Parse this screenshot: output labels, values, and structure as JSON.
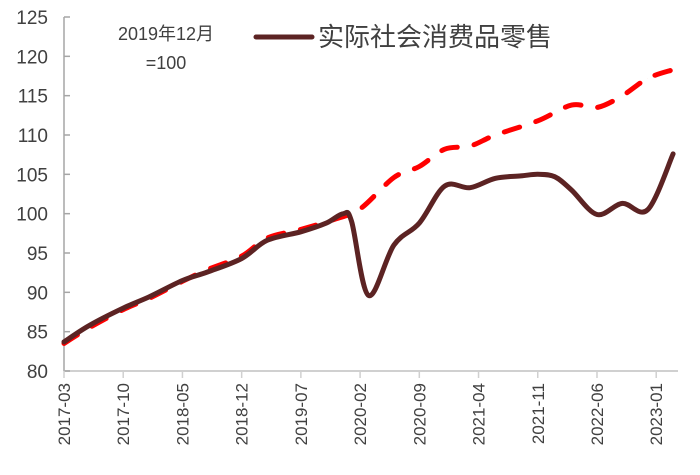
{
  "chart_data": {
    "type": "line",
    "title": "",
    "xlabel": "",
    "ylabel": "",
    "ylim": [
      80,
      125
    ],
    "yticks": [
      "80",
      "85",
      "90",
      "95",
      "100",
      "105",
      "110",
      "115",
      "120",
      "125"
    ],
    "xticks": [
      "2017-03",
      "2017-10",
      "2018-05",
      "2018-12",
      "2019-07",
      "2020-02",
      "2020-09",
      "2021-04",
      "2021-11",
      "2022-06",
      "2023-01"
    ],
    "grid": false,
    "legend_position": "top",
    "annotation": [
      "2019年12月",
      "=100"
    ],
    "series": [
      {
        "name": "实际社会消费品零售",
        "style": "solid",
        "color": "#5C2323",
        "points": [
          [
            "2017-03",
            83.7
          ],
          [
            "2017-06",
            85.8
          ],
          [
            "2017-10",
            88.0
          ],
          [
            "2018-01",
            89.4
          ],
          [
            "2018-05",
            91.5
          ],
          [
            "2018-08",
            92.6
          ],
          [
            "2018-12",
            94.3
          ],
          [
            "2019-03",
            96.6
          ],
          [
            "2019-07",
            97.7
          ],
          [
            "2019-10",
            98.8
          ],
          [
            "2019-12",
            100.0
          ],
          [
            "2020-01",
            99.0
          ],
          [
            "2020-03",
            89.6
          ],
          [
            "2020-06",
            96.0
          ],
          [
            "2020-09",
            98.8
          ],
          [
            "2020-12",
            103.5
          ],
          [
            "2021-03",
            103.3
          ],
          [
            "2021-06",
            104.5
          ],
          [
            "2021-09",
            104.8
          ],
          [
            "2021-11",
            105.0
          ],
          [
            "2022-01",
            104.7
          ],
          [
            "2022-03",
            103.0
          ],
          [
            "2022-06",
            99.9
          ],
          [
            "2022-09",
            101.3
          ],
          [
            "2022-12",
            100.5
          ],
          [
            "2023-03",
            107.6
          ]
        ]
      },
      {
        "style": "dashed",
        "color": "#FF0000",
        "points": [
          [
            "2017-03",
            83.5
          ],
          [
            "2017-06",
            85.5
          ],
          [
            "2017-10",
            87.8
          ],
          [
            "2018-01",
            89.2
          ],
          [
            "2018-05",
            91.4
          ],
          [
            "2018-08",
            92.9
          ],
          [
            "2018-12",
            94.6
          ],
          [
            "2019-03",
            96.9
          ],
          [
            "2019-07",
            98.0
          ],
          [
            "2019-11",
            99.3
          ],
          [
            "2020-02",
            100.6
          ],
          [
            "2020-06",
            104.6
          ],
          [
            "2020-09",
            106.0
          ],
          [
            "2020-12",
            108.2
          ],
          [
            "2021-03",
            108.6
          ],
          [
            "2021-06",
            110.0
          ],
          [
            "2021-11",
            111.8
          ],
          [
            "2022-03",
            113.8
          ],
          [
            "2022-06",
            113.5
          ],
          [
            "2022-09",
            115.0
          ],
          [
            "2022-12",
            117.2
          ],
          [
            "2023-03",
            118.3
          ]
        ]
      }
    ]
  }
}
